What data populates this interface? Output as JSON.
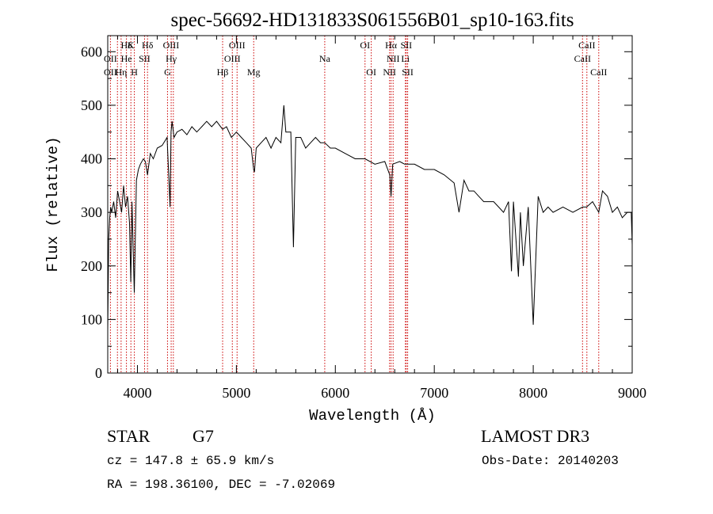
{
  "chart_data": {
    "type": "line",
    "title": "spec-56692-HD131833S061556B01_sp10-163.fits",
    "xlabel": "Wavelength (Å)",
    "ylabel": "Flux (relative)",
    "xlim": [
      3700,
      9000
    ],
    "ylim": [
      0,
      630
    ],
    "xticks": [
      {
        "value": 4000,
        "label": "4000"
      },
      {
        "value": 5000,
        "label": "5000"
      },
      {
        "value": 6000,
        "label": "6000"
      },
      {
        "value": 7000,
        "label": "7000"
      },
      {
        "value": 8000,
        "label": "8000"
      },
      {
        "value": 9000,
        "label": "9000"
      }
    ],
    "yticks": [
      {
        "value": 0,
        "label": "0"
      },
      {
        "value": 100,
        "label": "100"
      },
      {
        "value": 200,
        "label": "200"
      },
      {
        "value": 300,
        "label": "300"
      },
      {
        "value": 400,
        "label": "400"
      },
      {
        "value": 500,
        "label": "500"
      },
      {
        "value": 600,
        "label": "600"
      }
    ],
    "series": [
      {
        "color": "#000000",
        "x": [
          3700,
          3710,
          3720,
          3730,
          3740,
          3760,
          3780,
          3800,
          3820,
          3840,
          3860,
          3880,
          3900,
          3920,
          3933,
          3945,
          3968,
          3990,
          4010,
          4030,
          4060,
          4080,
          4102,
          4130,
          4160,
          4200,
          4250,
          4300,
          4330,
          4340,
          4350,
          4370,
          4400,
          4450,
          4500,
          4550,
          4600,
          4650,
          4700,
          4750,
          4800,
          4861,
          4900,
          4950,
          5000,
          5050,
          5100,
          5150,
          5175,
          5183,
          5200,
          5250,
          5300,
          5350,
          5400,
          5450,
          5480,
          5500,
          5550,
          5577,
          5600,
          5650,
          5700,
          5750,
          5800,
          5850,
          5893,
          5950,
          6000,
          6100,
          6200,
          6300,
          6400,
          6500,
          6550,
          6563,
          6580,
          6650,
          6700,
          6750,
          6800,
          6900,
          7000,
          7100,
          7200,
          7250,
          7300,
          7350,
          7400,
          7450,
          7500,
          7550,
          7600,
          7650,
          7700,
          7750,
          7780,
          7800,
          7850,
          7870,
          7900,
          7950,
          8000,
          8050,
          8100,
          8150,
          8200,
          8300,
          8400,
          8500,
          8540,
          8600,
          8662,
          8700,
          8750,
          8800,
          8850,
          8900,
          8950,
          8990,
          9000
        ],
        "y": [
          80,
          250,
          290,
          310,
          300,
          320,
          290,
          340,
          320,
          300,
          350,
          310,
          330,
          280,
          170,
          320,
          150,
          360,
          380,
          390,
          400,
          395,
          370,
          410,
          400,
          420,
          425,
          440,
          310,
          450,
          470,
          440,
          450,
          455,
          445,
          460,
          450,
          460,
          470,
          460,
          470,
          455,
          460,
          440,
          450,
          440,
          430,
          420,
          380,
          375,
          420,
          430,
          440,
          420,
          440,
          430,
          500,
          450,
          450,
          235,
          440,
          440,
          420,
          430,
          440,
          430,
          430,
          420,
          420,
          410,
          400,
          400,
          390,
          395,
          370,
          330,
          390,
          395,
          390,
          390,
          390,
          380,
          380,
          370,
          355,
          300,
          360,
          340,
          340,
          330,
          320,
          320,
          320,
          310,
          300,
          320,
          190,
          320,
          180,
          300,
          200,
          310,
          90,
          330,
          300,
          310,
          300,
          310,
          300,
          310,
          310,
          320,
          300,
          340,
          330,
          300,
          310,
          290,
          300,
          300,
          240
        ]
      }
    ],
    "annotations": [
      {
        "label": "Hδ",
        "x": 3889,
        "row": 1
      },
      {
        "label": "K",
        "x": 3934,
        "row": 1
      },
      {
        "label": "Hδ",
        "x": 4102,
        "row": 1
      },
      {
        "label": "OIII",
        "x": 4340,
        "row": 1
      },
      {
        "label": "OIII",
        "x": 5007,
        "row": 1
      },
      {
        "label": "OI",
        "x": 6300,
        "row": 1
      },
      {
        "label": "Hα",
        "x": 6563,
        "row": 1
      },
      {
        "label": "SII",
        "x": 6717,
        "row": 1
      },
      {
        "label": "CaII",
        "x": 8542,
        "row": 1
      },
      {
        "label": "OII",
        "x": 3727,
        "row": 2
      },
      {
        "label": "He",
        "x": 3889,
        "row": 2
      },
      {
        "label": "SII",
        "x": 4072,
        "row": 2
      },
      {
        "label": "Hγ",
        "x": 4341,
        "row": 2
      },
      {
        "label": "OIII",
        "x": 4959,
        "row": 2
      },
      {
        "label": "Na",
        "x": 5893,
        "row": 2
      },
      {
        "label": "NII",
        "x": 6584,
        "row": 2
      },
      {
        "label": "Li",
        "x": 6708,
        "row": 2
      },
      {
        "label": "CaII",
        "x": 8498,
        "row": 2
      },
      {
        "label": "OII",
        "x": 3727,
        "row": 3
      },
      {
        "label": "Hη",
        "x": 3835,
        "row": 3
      },
      {
        "label": "H",
        "x": 3969,
        "row": 3
      },
      {
        "label": "G",
        "x": 4304,
        "row": 3
      },
      {
        "label": "Hβ",
        "x": 4861,
        "row": 3
      },
      {
        "label": "Mg",
        "x": 5175,
        "row": 3
      },
      {
        "label": "OI",
        "x": 6363,
        "row": 3
      },
      {
        "label": "NII",
        "x": 6548,
        "row": 3
      },
      {
        "label": "SII",
        "x": 6731,
        "row": 3
      },
      {
        "label": "CaII",
        "x": 8662,
        "row": 3
      }
    ],
    "line_markers": [
      3727,
      3798,
      3835,
      3889,
      3934,
      3969,
      4072,
      4102,
      4304,
      4341,
      4363,
      4861,
      4959,
      5007,
      5175,
      5893,
      6300,
      6363,
      6548,
      6563,
      6584,
      6708,
      6717,
      6731,
      8498,
      8542,
      8662
    ],
    "marker_color": "#cc0000"
  },
  "info": {
    "object_class": "STAR",
    "subclass": "G7",
    "survey": "LAMOST DR3",
    "redshift": "cz = 147.8 ± 65.9 km/s",
    "obs_date": "Obs-Date: 20140203",
    "coords": "RA = 198.36100, DEC =  -7.02069"
  }
}
